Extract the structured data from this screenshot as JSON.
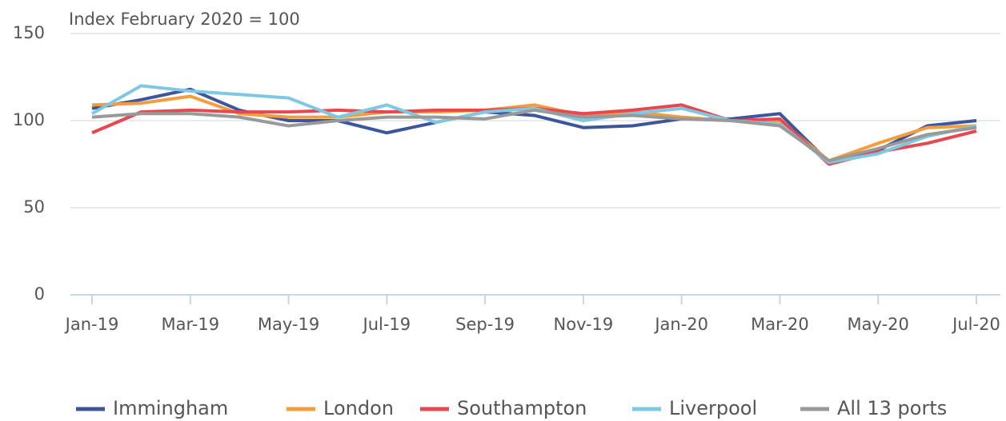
{
  "chart_data": {
    "type": "line",
    "title": "Index February 2020 = 100",
    "categories": [
      "Jan-19",
      null,
      "Mar-19",
      null,
      "May-19",
      null,
      "Jul-19",
      null,
      "Sep-19",
      null,
      "Nov-19",
      null,
      "Jan-20",
      null,
      "Mar-20",
      null,
      "May-20",
      null,
      "Jul-20"
    ],
    "series": [
      {
        "name": "Immingham",
        "color": "#3d559b",
        "values": [
          107,
          112,
          118,
          106,
          100,
          100,
          93,
          99,
          105,
          103,
          96,
          97,
          101,
          101,
          104,
          76,
          83,
          97,
          100
        ]
      },
      {
        "name": "London",
        "color": "#f49d3c",
        "values": [
          109,
          110,
          114,
          104,
          102,
          102,
          105,
          105,
          106,
          109,
          103,
          105,
          102,
          100,
          100,
          77,
          87,
          96,
          97
        ]
      },
      {
        "name": "Southampton",
        "color": "#e8474f",
        "values": [
          93,
          105,
          106,
          105,
          105,
          106,
          105,
          106,
          106,
          107,
          104,
          106,
          109,
          100,
          101,
          75,
          82,
          87,
          94
        ]
      },
      {
        "name": "Liverpool",
        "color": "#7ec8e3",
        "values": [
          104,
          120,
          117,
          115,
          113,
          102,
          109,
          99,
          105,
          107,
          100,
          104,
          107,
          100,
          98,
          76,
          81,
          91,
          97
        ]
      },
      {
        "name": "All 13 ports",
        "color": "#999999",
        "values": [
          102,
          104,
          104,
          102,
          97,
          100,
          102,
          102,
          101,
          106,
          102,
          103,
          101,
          100,
          97,
          77,
          84,
          92,
          96
        ]
      }
    ],
    "ylim": [
      0,
      150
    ],
    "yticks": [
      0,
      50,
      100,
      150
    ],
    "grid": true
  }
}
